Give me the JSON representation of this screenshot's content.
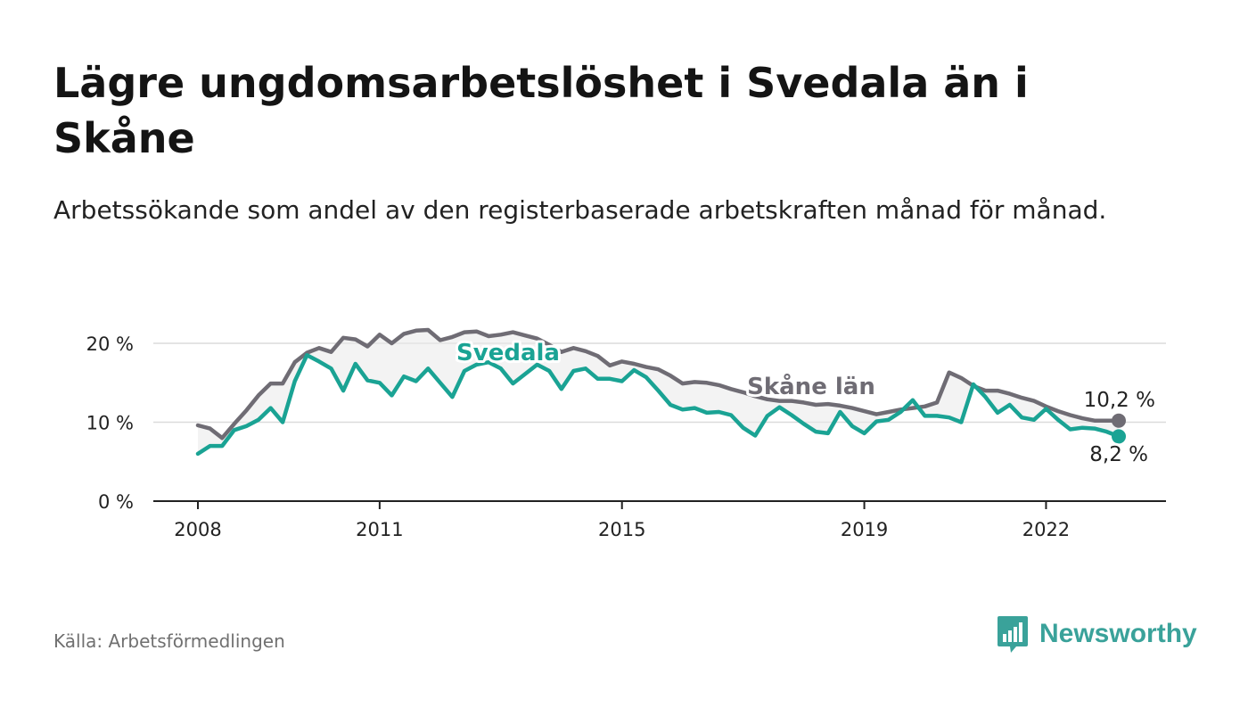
{
  "title": "Lägre ungdomsarbetslöshet i Svedala än i Skåne",
  "subtitle": "Arbetssökande som andel av den registerbaserade arbetskraften månad för månad.",
  "source": "Källa: Arbetsförmedlingen",
  "brand": "Newsworthy",
  "colors": {
    "svedala": "#1aa394",
    "skane": "#6f6c74",
    "grid": "#dcdcdc",
    "axis": "#222222",
    "band": "#e9e9e9",
    "brand": "#3aa29a"
  },
  "chart_data": {
    "type": "line",
    "title": "Lägre ungdomsarbetslöshet i Svedala än i Skåne",
    "xlabel": "",
    "ylabel": "",
    "ylim": [
      0,
      20
    ],
    "xlim": [
      2007.9,
      2023.9
    ],
    "y_ticks": [
      0,
      10,
      20
    ],
    "y_tick_labels": [
      "0 %",
      "10 %",
      "20 %"
    ],
    "x_ticks": [
      2008,
      2011,
      2015,
      2019,
      2022
    ],
    "x_tick_labels": [
      "2008",
      "2011",
      "2015",
      "2019",
      "2022"
    ],
    "series": [
      {
        "name": "Skåne län",
        "label": "Skåne län",
        "end_label": "10,2 %",
        "x": [
          2008.0,
          2008.2,
          2008.4,
          2008.6,
          2008.8,
          2009.0,
          2009.2,
          2009.4,
          2009.6,
          2009.8,
          2010.0,
          2010.2,
          2010.4,
          2010.6,
          2010.8,
          2011.0,
          2011.2,
          2011.4,
          2011.6,
          2011.8,
          2012.0,
          2012.2,
          2012.4,
          2012.6,
          2012.8,
          2013.0,
          2013.2,
          2013.4,
          2013.6,
          2013.8,
          2014.0,
          2014.2,
          2014.4,
          2014.6,
          2014.8,
          2015.0,
          2015.2,
          2015.4,
          2015.6,
          2015.8,
          2016.0,
          2016.2,
          2016.4,
          2016.6,
          2016.8,
          2017.0,
          2017.2,
          2017.4,
          2017.6,
          2017.8,
          2018.0,
          2018.2,
          2018.4,
          2018.6,
          2018.8,
          2019.0,
          2019.2,
          2019.4,
          2019.6,
          2019.8,
          2020.0,
          2020.2,
          2020.4,
          2020.6,
          2020.8,
          2021.0,
          2021.2,
          2021.4,
          2021.6,
          2021.8,
          2022.0,
          2022.2,
          2022.4,
          2022.6,
          2022.8,
          2023.0,
          2023.2
        ],
        "values": [
          9.6,
          9.2,
          8.0,
          9.8,
          11.5,
          13.4,
          14.9,
          14.9,
          17.6,
          18.8,
          19.4,
          18.9,
          20.7,
          20.5,
          19.6,
          21.1,
          20.0,
          21.2,
          21.6,
          21.7,
          20.4,
          20.8,
          21.4,
          21.5,
          20.9,
          21.1,
          21.4,
          21.0,
          20.6,
          19.8,
          18.9,
          19.4,
          19.0,
          18.4,
          17.2,
          17.7,
          17.4,
          17.0,
          16.7,
          15.9,
          14.9,
          15.1,
          15.0,
          14.7,
          14.2,
          13.8,
          13.3,
          12.9,
          12.7,
          12.7,
          12.5,
          12.2,
          12.3,
          12.1,
          11.8,
          11.4,
          11.0,
          11.3,
          11.6,
          11.8,
          12.0,
          12.5,
          16.3,
          15.6,
          14.6,
          14.0,
          14.0,
          13.6,
          13.1,
          12.7,
          12.0,
          11.4,
          10.9,
          10.5,
          10.2,
          10.2,
          10.2
        ]
      },
      {
        "name": "Svedala",
        "label": "Svedala",
        "end_label": "8,2 %",
        "x": [
          2008.0,
          2008.2,
          2008.4,
          2008.6,
          2008.8,
          2009.0,
          2009.2,
          2009.4,
          2009.6,
          2009.8,
          2010.0,
          2010.2,
          2010.4,
          2010.6,
          2010.8,
          2011.0,
          2011.2,
          2011.4,
          2011.6,
          2011.8,
          2012.0,
          2012.2,
          2012.4,
          2012.6,
          2012.8,
          2013.0,
          2013.2,
          2013.4,
          2013.6,
          2013.8,
          2014.0,
          2014.2,
          2014.4,
          2014.6,
          2014.8,
          2015.0,
          2015.2,
          2015.4,
          2015.6,
          2015.8,
          2016.0,
          2016.2,
          2016.4,
          2016.6,
          2016.8,
          2017.0,
          2017.2,
          2017.4,
          2017.6,
          2017.8,
          2018.0,
          2018.2,
          2018.4,
          2018.6,
          2018.8,
          2019.0,
          2019.2,
          2019.4,
          2019.6,
          2019.8,
          2020.0,
          2020.2,
          2020.4,
          2020.6,
          2020.8,
          2021.0,
          2021.2,
          2021.4,
          2021.6,
          2021.8,
          2022.0,
          2022.2,
          2022.4,
          2022.6,
          2022.8,
          2023.0,
          2023.2
        ],
        "values": [
          6.0,
          7.0,
          7.0,
          9.0,
          9.5,
          10.3,
          11.8,
          10.0,
          15.2,
          18.5,
          17.7,
          16.8,
          14.0,
          17.4,
          15.3,
          15.0,
          13.4,
          15.8,
          15.2,
          16.8,
          15.0,
          13.2,
          16.5,
          17.3,
          17.6,
          16.8,
          14.9,
          16.1,
          17.3,
          16.5,
          14.2,
          16.5,
          16.8,
          15.5,
          15.5,
          15.2,
          16.6,
          15.7,
          14.0,
          12.2,
          11.6,
          11.8,
          11.2,
          11.3,
          10.9,
          9.3,
          8.3,
          10.8,
          11.9,
          10.9,
          9.8,
          8.8,
          8.6,
          11.3,
          9.5,
          8.6,
          10.1,
          10.3,
          11.3,
          12.8,
          10.8,
          10.8,
          10.6,
          10.0,
          14.8,
          13.2,
          11.2,
          12.2,
          10.6,
          10.3,
          11.7,
          10.3,
          9.1,
          9.3,
          9.2,
          8.8,
          8.2
        ]
      }
    ]
  }
}
